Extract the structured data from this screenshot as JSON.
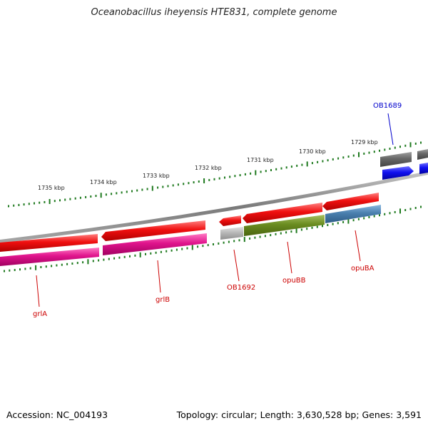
{
  "title": "Oceanobacillus iheyensis HTE831, complete genome",
  "footer": {
    "accession": "Accession: NC_004193",
    "summary": "Topology: circular; Length: 3,630,528 bp; Genes: 3,591"
  },
  "ticks": [
    "1735 kbp",
    "1734 kbp",
    "1733 kbp",
    "1732 kbp",
    "1731 kbp",
    "1730 kbp",
    "1729 kbp"
  ],
  "genes": [
    "grlA",
    "grlB",
    "OB1692",
    "opuBB",
    "opuBA",
    "OB1689"
  ],
  "colors": {
    "red": "#e81010",
    "magenta": "#e0148c",
    "olive": "#6a8c20",
    "steel": "#4a7fae",
    "blue": "#1010f0",
    "gray": "#666666",
    "lightgray": "#b8b8b8",
    "tick": "#1f7a1f",
    "label_red": "#cc0000",
    "label_blue": "#0000cc"
  }
}
